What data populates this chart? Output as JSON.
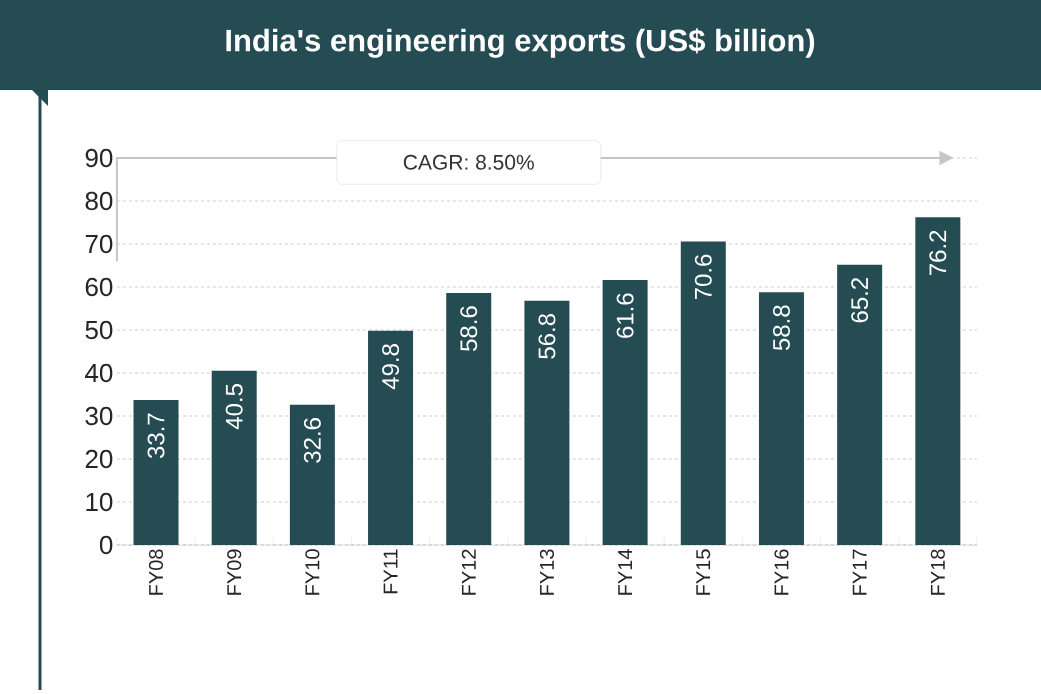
{
  "chart_data": {
    "type": "bar",
    "title": "India's engineering exports (US$ billion)",
    "categories": [
      "FY08",
      "FY09",
      "FY10",
      "FY11",
      "FY12",
      "FY13",
      "FY14",
      "FY15",
      "FY16",
      "FY17",
      "FY18"
    ],
    "values": [
      33.7,
      40.5,
      32.6,
      49.8,
      58.6,
      56.8,
      61.6,
      70.6,
      58.8,
      65.2,
      76.2
    ],
    "color": "#254b53",
    "ylim": [
      0,
      90
    ],
    "yticks": [
      0,
      10,
      20,
      30,
      40,
      50,
      60,
      70,
      80,
      90
    ],
    "grid": "y",
    "data_labels": true,
    "annotations": [
      "CAGR: 8.50%"
    ]
  }
}
